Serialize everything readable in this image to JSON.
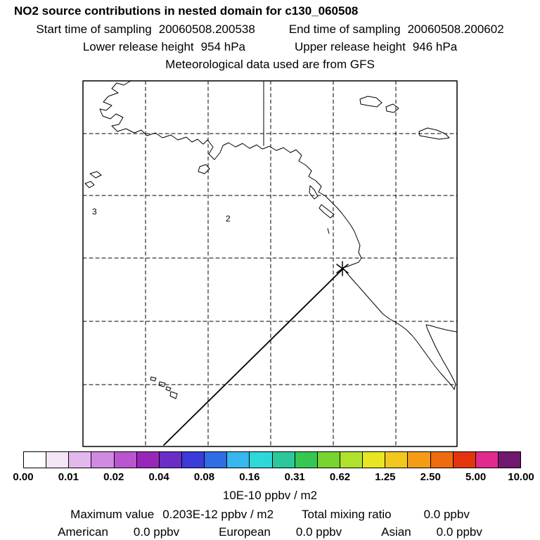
{
  "header": {
    "title": "NO2 source contributions in nested domain for c130_060508",
    "start_label": "Start time of sampling",
    "start_value": "20060508.200538",
    "end_label": "End time of sampling",
    "end_value": "20060508.200602",
    "lower_label": "Lower release height",
    "lower_value": "954 hPa",
    "upper_label": "Upper release height",
    "upper_value": "946 hPa",
    "met_line": "Meteorological data used are from GFS"
  },
  "map": {
    "labels": [
      {
        "text": "3"
      },
      {
        "text": "2"
      }
    ]
  },
  "colorbar": {
    "colors": [
      "#ffffff",
      "#f3e4f6",
      "#e3b8ec",
      "#d08ae0",
      "#bb55cf",
      "#9926bb",
      "#6a2ec6",
      "#3a3bd8",
      "#2f6ce6",
      "#38b6ee",
      "#2fd8d8",
      "#2cc79a",
      "#35c74f",
      "#77d42f",
      "#aee22c",
      "#e6e622",
      "#f2c71e",
      "#f59c16",
      "#ee6c0e",
      "#e3350d",
      "#e12a8c",
      "#71176e"
    ],
    "tick_labels": [
      "0.00",
      "0.01",
      "0.02",
      "0.04",
      "0.08",
      "0.16",
      "0.31",
      "0.62",
      "1.25",
      "2.50",
      "5.00",
      "10.00"
    ],
    "units": "10E-10 ppbv / m2"
  },
  "footer": {
    "max_label": "Maximum value",
    "max_value": "0.203E-12 ppbv / m2",
    "total_label": "Total mixing ratio",
    "total_value": "0.0 ppbv",
    "sources": [
      {
        "label": "American",
        "value": "0.0 ppbv"
      },
      {
        "label": "European",
        "value": "0.0 ppbv"
      },
      {
        "label": "Asian",
        "value": "0.0 ppbv"
      }
    ]
  },
  "chart_data": {
    "type": "heatmap",
    "title": "NO2 source contributions in nested domain for c130_060508",
    "colorbar_tick_values": [
      0.0,
      0.01,
      0.02,
      0.04,
      0.08,
      0.16,
      0.31,
      0.62,
      1.25,
      2.5,
      5.0,
      10.0
    ],
    "colorbar_units": "10E-10 ppbv / m2",
    "colorbar_scale": "logarithmic (doubling intervals)",
    "maximum_value": "0.203E-12 ppbv / m2",
    "total_mixing_ratio": "0.0 ppbv",
    "source_contributions": [
      {
        "source": "American",
        "value": "0.0 ppbv"
      },
      {
        "source": "European",
        "value": "0.0 ppbv"
      },
      {
        "source": "Asian",
        "value": "0.0 ppbv"
      }
    ],
    "map_overlay_labels": [
      "3",
      "2"
    ],
    "shaded_cells": [],
    "annotations": [
      "asterisk release marker on California coast",
      "straight trajectory line from lower-left to release marker"
    ]
  }
}
